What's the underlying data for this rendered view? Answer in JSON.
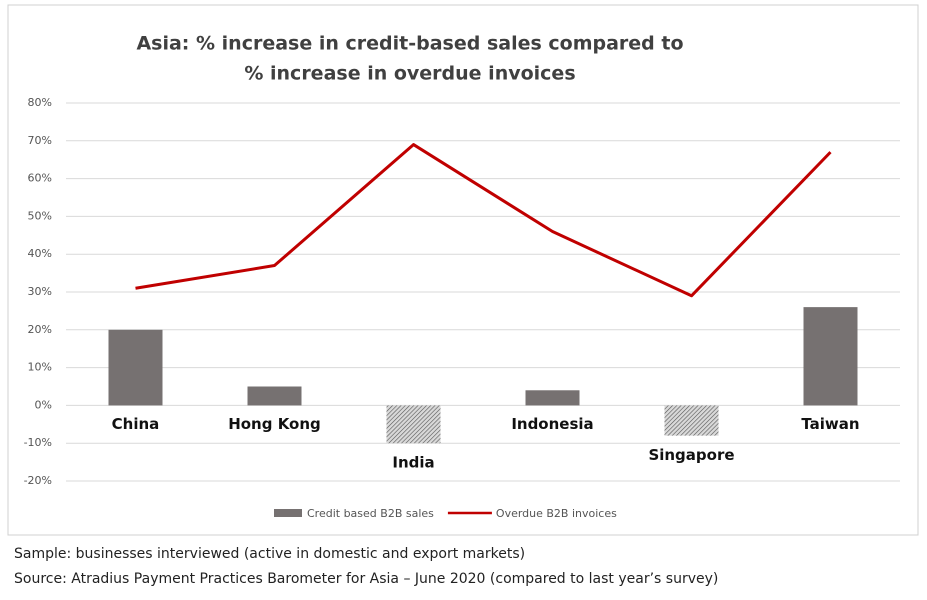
{
  "chart_data": {
    "type": "bar_line",
    "title": [
      "Asia: % increase in credit-based sales compared to",
      "% increase in overdue invoices"
    ],
    "categories": [
      "China",
      "Hong Kong",
      "India",
      "Indonesia",
      "Singapore",
      "Taiwan"
    ],
    "series": [
      {
        "name": "Credit based B2B sales",
        "type": "bar",
        "color": "#767171",
        "values": [
          20,
          5,
          -10,
          4,
          -8,
          26
        ]
      },
      {
        "name": "Overdue B2B invoices",
        "type": "line",
        "color": "#c00000",
        "values": [
          31,
          37,
          69,
          46,
          29,
          67
        ]
      }
    ],
    "ylim": [
      -20,
      80
    ],
    "yticks": [
      {
        "value": -20,
        "label": "-20%"
      },
      {
        "value": -10,
        "label": "-10%"
      },
      {
        "value": 0,
        "label": "0%"
      },
      {
        "value": 10,
        "label": "10%"
      },
      {
        "value": 20,
        "label": "20%"
      },
      {
        "value": 30,
        "label": "30%"
      },
      {
        "value": 40,
        "label": "40%"
      },
      {
        "value": 50,
        "label": "50%"
      },
      {
        "value": 60,
        "label": "60%"
      },
      {
        "value": 70,
        "label": "70%"
      },
      {
        "value": 80,
        "label": "80%"
      }
    ],
    "grid": true,
    "legend": "bottom",
    "notes": [
      "Sample: businesses interviewed (active in domestic and export markets)",
      "Source: Atradius Payment Practices Barometer for Asia – June 2020 (compared to last year’s survey)"
    ]
  }
}
